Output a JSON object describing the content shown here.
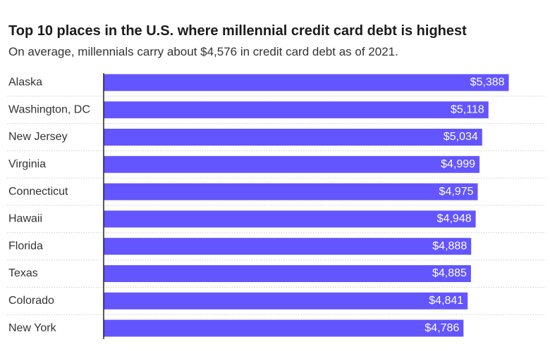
{
  "chart_data": {
    "type": "bar",
    "orientation": "horizontal",
    "title": "Top 10 places in the U.S. where millennial credit card debt is highest",
    "subtitle": "On average, millennials carry about $4,576 in credit card debt as of 2021.",
    "categories": [
      "Alaska",
      "Washington, DC",
      "New Jersey",
      "Virginia",
      "Connecticut",
      "Hawaii",
      "Florida",
      "Texas",
      "Colorado",
      "New York"
    ],
    "values": [
      5388,
      5118,
      5034,
      4999,
      4975,
      4948,
      4888,
      4885,
      4841,
      4786
    ],
    "value_labels": [
      "$5,388",
      "$5,118",
      "$5,034",
      "$4,999",
      "$4,975",
      "$4,948",
      "$4,888",
      "$4,885",
      "$4,841",
      "$4,786"
    ],
    "xlim": [
      0,
      5880
    ],
    "grid": false,
    "bar_color": "#6355ff"
  }
}
